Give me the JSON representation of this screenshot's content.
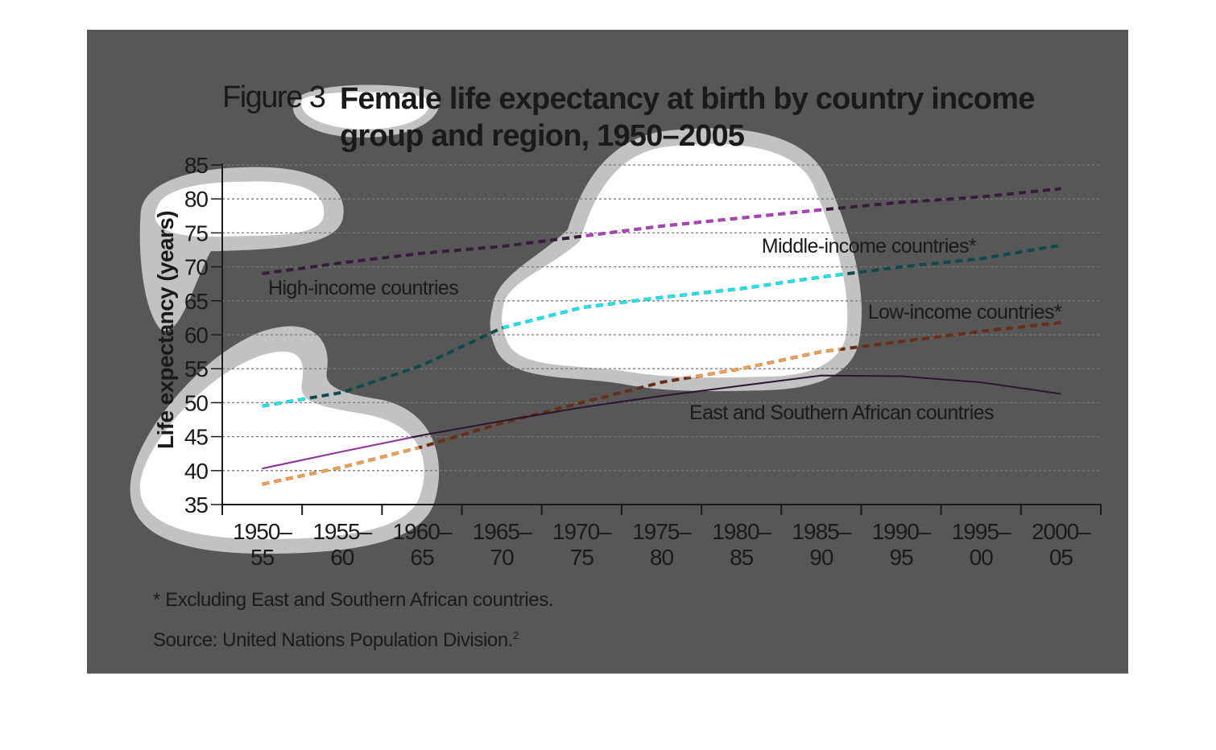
{
  "figure": {
    "label": "Figure 3",
    "title": "Female life expectancy at birth by country income group and region, 1950–2005",
    "footnote": "* Excluding East and Southern African countries.",
    "source": "Source: United Nations Population Division.",
    "source_ref": "2"
  },
  "colors": {
    "background": "#575757",
    "blob_fill": "#ffffff",
    "blob_halo": "#c2c2c2",
    "gridline": "#7a7a7a",
    "axis": "#1a1a1a",
    "text": "#1a1a1a"
  },
  "chart_data": {
    "type": "line",
    "title": "Female life expectancy at birth by country income group and region, 1950–2005",
    "ylabel": "Life expectancy (years)",
    "xlabel": "",
    "ylim": [
      35,
      85
    ],
    "yticks": [
      35,
      40,
      45,
      50,
      55,
      60,
      65,
      70,
      75,
      80,
      85
    ],
    "grid": true,
    "categories": [
      [
        "1950–",
        "55"
      ],
      [
        "1955–",
        "60"
      ],
      [
        "1960–",
        "65"
      ],
      [
        "1965–",
        "70"
      ],
      [
        "1970–",
        "75"
      ],
      [
        "1975–",
        "80"
      ],
      [
        "1980–",
        "85"
      ],
      [
        "1985–",
        "90"
      ],
      [
        "1990–",
        "95"
      ],
      [
        "1995–",
        "00"
      ],
      [
        "2000–",
        "05"
      ]
    ],
    "series": [
      {
        "name": "High-income countries",
        "style": "dashed",
        "color": "#3a1a3e",
        "color_on_white": "#b040c0",
        "values": [
          69.0,
          70.6,
          72.0,
          73.0,
          74.5,
          76.0,
          77.2,
          78.4,
          79.5,
          80.3,
          81.5
        ]
      },
      {
        "name": "Middle-income countries*",
        "style": "dashed",
        "color": "#0d4a50",
        "color_on_white": "#18e8f0",
        "values": [
          49.5,
          51.5,
          55.5,
          61.0,
          64.0,
          65.5,
          66.8,
          68.5,
          70.0,
          71.2,
          73.2
        ]
      },
      {
        "name": "Low-income countries*",
        "style": "dashed",
        "color": "#6a2e14",
        "color_on_white": "#f0a050",
        "values": [
          38.0,
          40.5,
          43.5,
          47.0,
          50.0,
          53.0,
          55.0,
          57.5,
          59.0,
          60.5,
          61.8
        ]
      },
      {
        "name": "East and Southern African countries",
        "style": "solid",
        "color": "#2a1530",
        "color_on_white": "#a030b0",
        "values": [
          40.3,
          42.8,
          45.2,
          47.3,
          49.3,
          51.0,
          52.5,
          54.0,
          53.9,
          53.0,
          51.3
        ]
      }
    ],
    "notes": [
      "* Excluding East and Southern African countries."
    ]
  }
}
